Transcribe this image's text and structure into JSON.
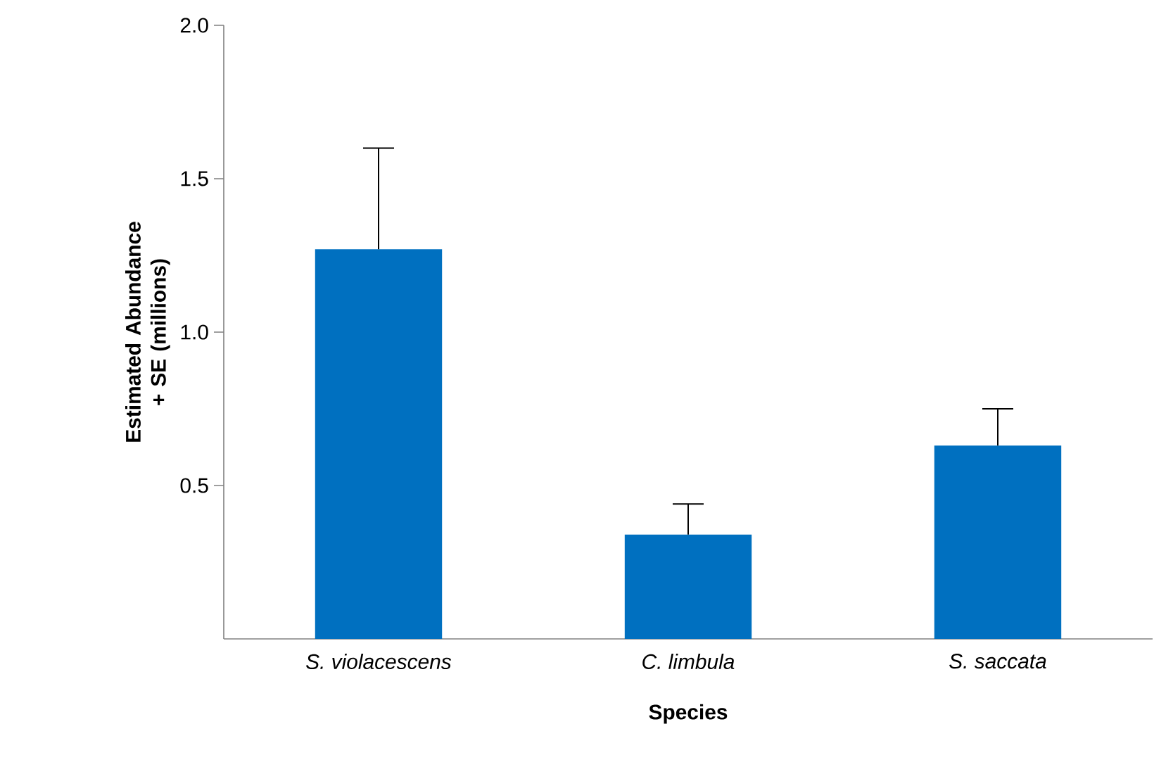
{
  "chart_data": {
    "type": "bar",
    "xlabel": "Species",
    "ylabel": "Estimated Abundance + SE (millions)",
    "categories": [
      "S. violacescens",
      "C. limbula",
      "S. saccata"
    ],
    "values": [
      1.27,
      0.34,
      0.63
    ],
    "color": "#0070c0",
    "errors": [
      [
        1.27,
        1.6
      ],
      [
        0.34,
        0.44
      ],
      [
        0.63,
        0.75
      ]
    ],
    "ylim": [
      0,
      2
    ],
    "yticks": [
      {
        "value": 0.5,
        "label": "0.5"
      },
      {
        "value": 1,
        "label": "1.0"
      },
      {
        "value": 1.5,
        "label": "1.5"
      },
      {
        "value": 2,
        "label": "2.0"
      }
    ],
    "grid": false
  }
}
